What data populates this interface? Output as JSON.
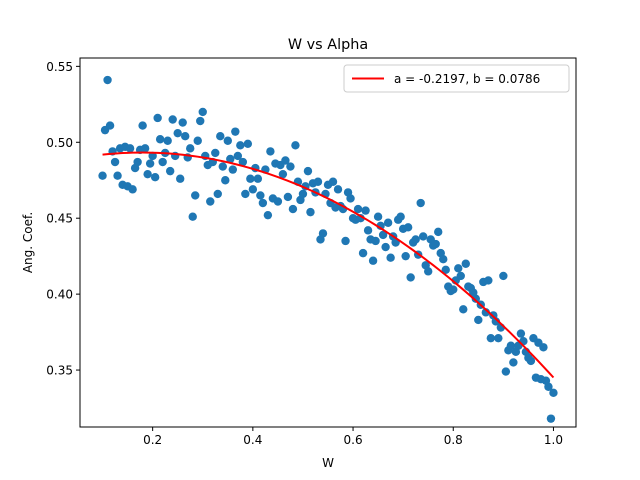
{
  "chart_data": {
    "type": "scatter",
    "title": "W vs Alpha",
    "xlabel": "W",
    "ylabel": "Ang. Coef.",
    "xlim": [
      0.055,
      1.045
    ],
    "ylim": [
      0.3125,
      0.5555
    ],
    "xticks": [
      0.2,
      0.4,
      0.6,
      0.8,
      1.0
    ],
    "xtick_labels": [
      "0.2",
      "0.4",
      "0.6",
      "0.8",
      "1.0"
    ],
    "yticks": [
      0.35,
      0.4,
      0.45,
      0.5,
      0.55
    ],
    "ytick_labels": [
      "0.35",
      "0.40",
      "0.45",
      "0.50",
      "0.55"
    ],
    "grid": false,
    "legend_position": "top-right",
    "colors": {
      "points": "#1f77b4",
      "fit": "#ff0000"
    },
    "series": [
      {
        "kind": "scatter",
        "points": [
          [
            0.1,
            0.478
          ],
          [
            0.105,
            0.508
          ],
          [
            0.11,
            0.541
          ],
          [
            0.115,
            0.511
          ],
          [
            0.12,
            0.494
          ],
          [
            0.125,
            0.487
          ],
          [
            0.13,
            0.478
          ],
          [
            0.135,
            0.496
          ],
          [
            0.14,
            0.472
          ],
          [
            0.145,
            0.497
          ],
          [
            0.15,
            0.471
          ],
          [
            0.155,
            0.496
          ],
          [
            0.16,
            0.469
          ],
          [
            0.165,
            0.483
          ],
          [
            0.17,
            0.487
          ],
          [
            0.175,
            0.495
          ],
          [
            0.18,
            0.511
          ],
          [
            0.185,
            0.496
          ],
          [
            0.19,
            0.479
          ],
          [
            0.195,
            0.486
          ],
          [
            0.2,
            0.491
          ],
          [
            0.205,
            0.477
          ],
          [
            0.21,
            0.516
          ],
          [
            0.215,
            0.502
          ],
          [
            0.22,
            0.487
          ],
          [
            0.225,
            0.493
          ],
          [
            0.23,
            0.501
          ],
          [
            0.235,
            0.481
          ],
          [
            0.24,
            0.515
          ],
          [
            0.245,
            0.491
          ],
          [
            0.25,
            0.506
          ],
          [
            0.255,
            0.476
          ],
          [
            0.26,
            0.513
          ],
          [
            0.265,
            0.504
          ],
          [
            0.27,
            0.49
          ],
          [
            0.275,
            0.496
          ],
          [
            0.28,
            0.451
          ],
          [
            0.285,
            0.465
          ],
          [
            0.29,
            0.501
          ],
          [
            0.295,
            0.514
          ],
          [
            0.3,
            0.52
          ],
          [
            0.305,
            0.491
          ],
          [
            0.31,
            0.485
          ],
          [
            0.315,
            0.461
          ],
          [
            0.32,
            0.487
          ],
          [
            0.325,
            0.493
          ],
          [
            0.33,
            0.466
          ],
          [
            0.335,
            0.504
          ],
          [
            0.34,
            0.484
          ],
          [
            0.345,
            0.475
          ],
          [
            0.35,
            0.501
          ],
          [
            0.355,
            0.489
          ],
          [
            0.36,
            0.482
          ],
          [
            0.365,
            0.507
          ],
          [
            0.37,
            0.491
          ],
          [
            0.375,
            0.498
          ],
          [
            0.38,
            0.487
          ],
          [
            0.385,
            0.466
          ],
          [
            0.39,
            0.499
          ],
          [
            0.395,
            0.476
          ],
          [
            0.4,
            0.469
          ],
          [
            0.405,
            0.483
          ],
          [
            0.41,
            0.476
          ],
          [
            0.415,
            0.465
          ],
          [
            0.42,
            0.46
          ],
          [
            0.425,
            0.482
          ],
          [
            0.43,
            0.452
          ],
          [
            0.435,
            0.494
          ],
          [
            0.44,
            0.463
          ],
          [
            0.445,
            0.486
          ],
          [
            0.45,
            0.461
          ],
          [
            0.455,
            0.485
          ],
          [
            0.46,
            0.479
          ],
          [
            0.465,
            0.488
          ],
          [
            0.47,
            0.464
          ],
          [
            0.475,
            0.484
          ],
          [
            0.48,
            0.456
          ],
          [
            0.485,
            0.498
          ],
          [
            0.49,
            0.474
          ],
          [
            0.495,
            0.462
          ],
          [
            0.5,
            0.466
          ],
          [
            0.505,
            0.471
          ],
          [
            0.51,
            0.481
          ],
          [
            0.515,
            0.454
          ],
          [
            0.52,
            0.473
          ],
          [
            0.525,
            0.467
          ],
          [
            0.53,
            0.474
          ],
          [
            0.535,
            0.436
          ],
          [
            0.54,
            0.44
          ],
          [
            0.545,
            0.466
          ],
          [
            0.55,
            0.472
          ],
          [
            0.555,
            0.46
          ],
          [
            0.56,
            0.474
          ],
          [
            0.565,
            0.457
          ],
          [
            0.57,
            0.469
          ],
          [
            0.575,
            0.458
          ],
          [
            0.58,
            0.456
          ],
          [
            0.585,
            0.435
          ],
          [
            0.59,
            0.467
          ],
          [
            0.595,
            0.463
          ],
          [
            0.6,
            0.45
          ],
          [
            0.605,
            0.449
          ],
          [
            0.61,
            0.456
          ],
          [
            0.615,
            0.45
          ],
          [
            0.62,
            0.427
          ],
          [
            0.625,
            0.455
          ],
          [
            0.63,
            0.442
          ],
          [
            0.635,
            0.436
          ],
          [
            0.64,
            0.422
          ],
          [
            0.645,
            0.435
          ],
          [
            0.65,
            0.451
          ],
          [
            0.655,
            0.445
          ],
          [
            0.66,
            0.439
          ],
          [
            0.665,
            0.431
          ],
          [
            0.67,
            0.447
          ],
          [
            0.675,
            0.424
          ],
          [
            0.68,
            0.438
          ],
          [
            0.685,
            0.434
          ],
          [
            0.69,
            0.449
          ],
          [
            0.695,
            0.451
          ],
          [
            0.7,
            0.443
          ],
          [
            0.705,
            0.425
          ],
          [
            0.71,
            0.444
          ],
          [
            0.715,
            0.411
          ],
          [
            0.72,
            0.434
          ],
          [
            0.725,
            0.436
          ],
          [
            0.73,
            0.426
          ],
          [
            0.735,
            0.46
          ],
          [
            0.74,
            0.438
          ],
          [
            0.745,
            0.419
          ],
          [
            0.75,
            0.415
          ],
          [
            0.755,
            0.436
          ],
          [
            0.76,
            0.432
          ],
          [
            0.765,
            0.433
          ],
          [
            0.77,
            0.441
          ],
          [
            0.775,
            0.427
          ],
          [
            0.78,
            0.423
          ],
          [
            0.785,
            0.416
          ],
          [
            0.79,
            0.405
          ],
          [
            0.795,
            0.402
          ],
          [
            0.8,
            0.403
          ],
          [
            0.805,
            0.409
          ],
          [
            0.81,
            0.417
          ],
          [
            0.815,
            0.412
          ],
          [
            0.82,
            0.39
          ],
          [
            0.825,
            0.42
          ],
          [
            0.83,
            0.405
          ],
          [
            0.835,
            0.404
          ],
          [
            0.84,
            0.401
          ],
          [
            0.845,
            0.397
          ],
          [
            0.85,
            0.383
          ],
          [
            0.855,
            0.393
          ],
          [
            0.86,
            0.408
          ],
          [
            0.865,
            0.388
          ],
          [
            0.87,
            0.409
          ],
          [
            0.875,
            0.371
          ],
          [
            0.88,
            0.386
          ],
          [
            0.885,
            0.382
          ],
          [
            0.89,
            0.371
          ],
          [
            0.895,
            0.378
          ],
          [
            0.9,
            0.412
          ],
          [
            0.905,
            0.349
          ],
          [
            0.91,
            0.363
          ],
          [
            0.915,
            0.366
          ],
          [
            0.92,
            0.355
          ],
          [
            0.925,
            0.362
          ],
          [
            0.93,
            0.366
          ],
          [
            0.935,
            0.374
          ],
          [
            0.94,
            0.369
          ],
          [
            0.945,
            0.362
          ],
          [
            0.95,
            0.358
          ],
          [
            0.955,
            0.356
          ],
          [
            0.96,
            0.371
          ],
          [
            0.965,
            0.345
          ],
          [
            0.97,
            0.368
          ],
          [
            0.975,
            0.344
          ],
          [
            0.98,
            0.365
          ],
          [
            0.985,
            0.343
          ],
          [
            0.99,
            0.339
          ],
          [
            0.995,
            0.318
          ],
          [
            1.0,
            0.335
          ]
        ]
      },
      {
        "kind": "line",
        "name": "a = -0.2197, b = 0.0786",
        "a": -0.2197,
        "b": 0.0786,
        "c": 0.4862,
        "x_range": [
          0.1,
          1.0
        ]
      }
    ]
  }
}
